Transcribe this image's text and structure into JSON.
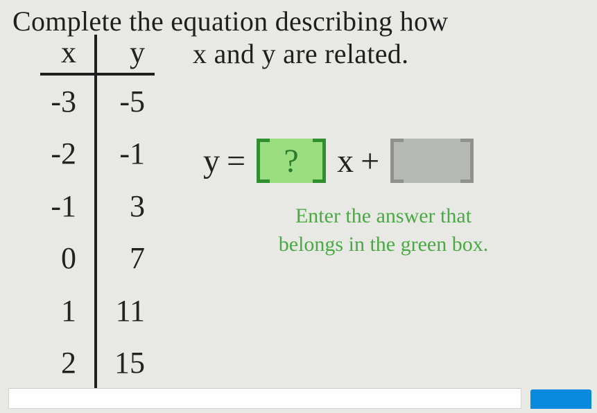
{
  "title": {
    "line1": "Complete the equation describing how",
    "line2": "x and y are related."
  },
  "table": {
    "headers": {
      "x": "x",
      "y": "y"
    },
    "rows": [
      {
        "x": "-3",
        "y": "-5"
      },
      {
        "x": "-2",
        "y": "-1"
      },
      {
        "x": "-1",
        "y": "3"
      },
      {
        "x": "0",
        "y": "7"
      },
      {
        "x": "1",
        "y": "11"
      },
      {
        "x": "2",
        "y": "15"
      }
    ]
  },
  "equation": {
    "y": "y",
    "equals": "=",
    "unknown": "?",
    "x": "x",
    "plus": "+"
  },
  "hint": {
    "line1": "Enter the answer that",
    "line2": "belongs in the green box."
  },
  "colors": {
    "background": "#e8e8e5",
    "text": "#1f1f1f",
    "green_box_fill": "#9ade7f",
    "green_box_border": "#2f8f2f",
    "green_text": "#2c7a2c",
    "gray_box_fill": "#b7b9b6",
    "gray_box_border": "#8f918e",
    "hint_text": "#49a942",
    "input_bg": "#ffffff",
    "button_bg": "#0a8adf"
  },
  "fonts": {
    "title_size_pt": 30,
    "table_size_pt": 33,
    "equation_size_pt": 36,
    "hint_size_pt": 22
  }
}
